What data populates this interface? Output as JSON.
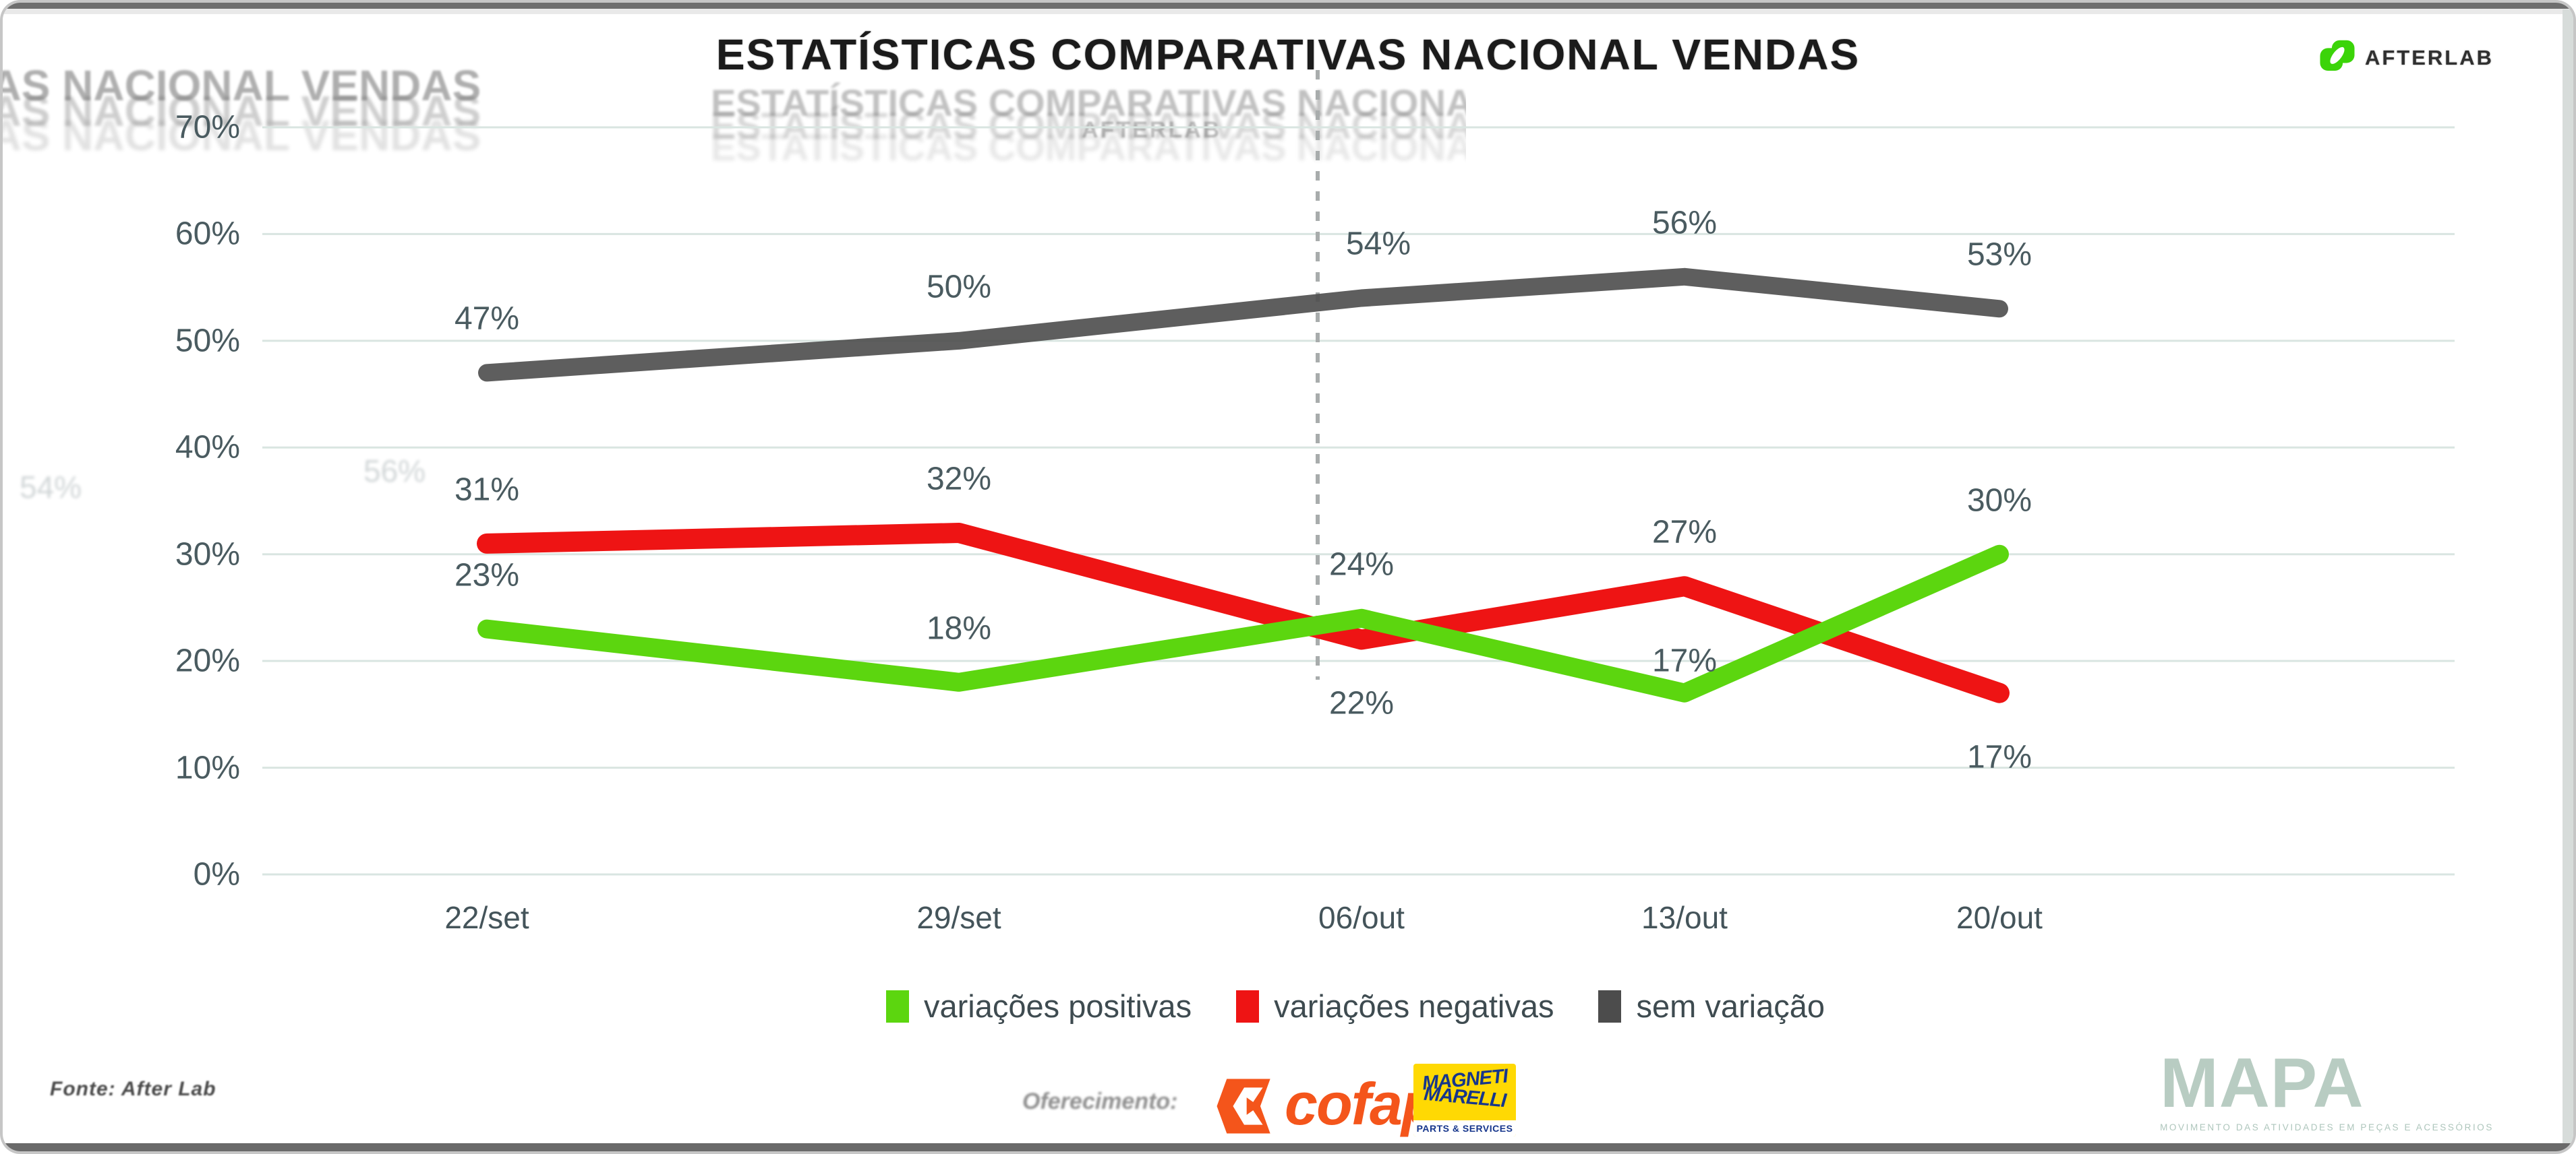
{
  "title": "ESTATÍSTICAS COMPARATIVAS NACIONAL VENDAS",
  "brand": {
    "name": "AFTERLAB",
    "logo_color": "#3BD409"
  },
  "chart_data": {
    "type": "line",
    "title": "ESTATÍSTICAS COMPARATIVAS NACIONAL VENDAS",
    "categories": [
      "22/set",
      "29/set",
      "06/out",
      "13/out",
      "20/out"
    ],
    "series": [
      {
        "name": "variações positivas",
        "color": "#5CD60F",
        "values": [
          23,
          18,
          24,
          17,
          30
        ]
      },
      {
        "name": "variações negativas",
        "color": "#EE1414",
        "values": [
          31,
          32,
          22,
          27,
          17
        ]
      },
      {
        "name": "sem variação",
        "color": "#4C4C4C",
        "values": [
          47,
          50,
          54,
          56,
          53
        ]
      }
    ],
    "data_label_format": "{v}%",
    "y_ticks": [
      "70%",
      "60%",
      "50%",
      "40%",
      "30%",
      "20%",
      "10%",
      "0%"
    ],
    "ylim": [
      0,
      70
    ],
    "grid": true,
    "grid_color": "#D9E5E1",
    "axis_label_color": "#4A5B60",
    "legend_position": "bottom",
    "annotation": {
      "dashed_vertical_line_near": "06/out"
    }
  },
  "footer": {
    "source": "Fonte: After Lab",
    "sponsorship_label": "Oferecimento:",
    "sponsors": {
      "cofap": {
        "name": "cofap",
        "color": "#F4551B"
      },
      "magneti_marelli": {
        "line1": "MAGNETI",
        "line2": "MARELLI",
        "sub": "PARTS & SERVICES",
        "bg": "#FFD903",
        "fg": "#16368C"
      }
    },
    "mapa": {
      "name": "MAPA",
      "tagline": "MOVIMENTO DAS ATIVIDADES EM PEÇAS E ACESSÓRIOS"
    }
  },
  "artifacts": {
    "ghost_axis_labels": [
      "54%",
      "56%"
    ]
  }
}
